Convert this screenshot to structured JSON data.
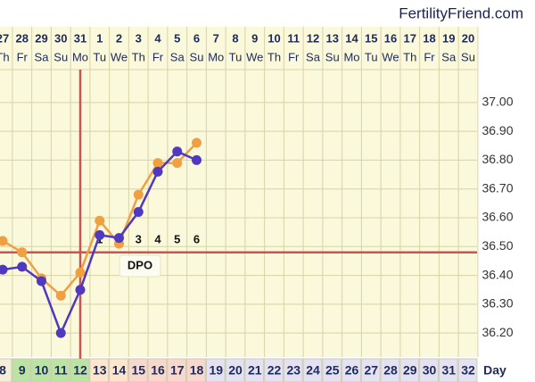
{
  "brand": "FertilityFriend.com",
  "chart_data": {
    "type": "line",
    "dates": [
      "27",
      "28",
      "29",
      "30",
      "31",
      "1",
      "2",
      "3",
      "4",
      "5",
      "6",
      "7",
      "8",
      "9",
      "10",
      "11",
      "12",
      "13",
      "14",
      "15",
      "16",
      "17",
      "18",
      "19",
      "20"
    ],
    "weekdays": [
      "Th",
      "Fr",
      "Sa",
      "Su",
      "Mo",
      "Tu",
      "We",
      "Th",
      "Fr",
      "Sa",
      "Su",
      "Mo",
      "Tu",
      "We",
      "Th",
      "Fr",
      "Sa",
      "Su",
      "Mo",
      "Tu",
      "We",
      "Th",
      "Fr",
      "Sa",
      "Su"
    ],
    "x": [
      8,
      9,
      10,
      11,
      12,
      13,
      14,
      15,
      16,
      17,
      18,
      19,
      20,
      21,
      22,
      23,
      24,
      25,
      26,
      27,
      28,
      29,
      30,
      31,
      32
    ],
    "xlabel": "Day",
    "day_colors": [
      "#f4efd6",
      "#b9e4a2",
      "#b9e4a2",
      "#b9e4a2",
      "#b9e4a2",
      "#fde6cc",
      "#fde6cc",
      "#f9d8cc",
      "#f9d8cc",
      "#f9d8cc",
      "#f9d8cc",
      "#e4e2f2",
      "#e4e2f2",
      "#e4e2f2",
      "#e4e2f2",
      "#e4e2f2",
      "#e4e2f2",
      "#e4e2f2",
      "#e4e2f2",
      "#e4e2f2",
      "#e4e2f2",
      "#e4e2f2",
      "#e4e2f2",
      "#e4e2f2",
      "#e4e2f2"
    ],
    "series": [
      {
        "color": "#f0a040",
        "values": [
          36.52,
          36.48,
          36.39,
          36.33,
          36.41,
          36.59,
          36.51,
          36.68,
          36.79,
          36.79,
          36.86,
          null,
          null,
          null,
          null,
          null,
          null,
          null,
          null,
          null,
          null,
          null,
          null,
          null,
          null
        ]
      },
      {
        "color": "#5038c0",
        "values": [
          36.42,
          36.43,
          36.38,
          36.2,
          36.35,
          36.54,
          36.53,
          36.62,
          36.76,
          36.83,
          36.8,
          null,
          null,
          null,
          null,
          null,
          null,
          null,
          null,
          null,
          null,
          null,
          null,
          null,
          null
        ]
      }
    ],
    "ylim": [
      36.12,
      37.08
    ],
    "yticks": [
      {
        "value": 36.2,
        "label": "36.20"
      },
      {
        "value": 36.3,
        "label": "36.30"
      },
      {
        "value": 36.4,
        "label": "36.40"
      },
      {
        "value": 36.5,
        "label": "36.50"
      },
      {
        "value": 36.6,
        "label": "36.60"
      },
      {
        "value": 36.7,
        "label": "36.70"
      },
      {
        "value": 36.8,
        "label": "36.80"
      },
      {
        "value": 36.9,
        "label": "36.90"
      },
      {
        "value": 37.0,
        "label": "37.00"
      }
    ],
    "grid": true,
    "coverline": 36.48,
    "ovulation_day": 12,
    "line_color": "#c85555",
    "dpo": [
      1,
      2,
      3,
      4,
      5,
      6
    ],
    "dpo_label": "DPO"
  }
}
